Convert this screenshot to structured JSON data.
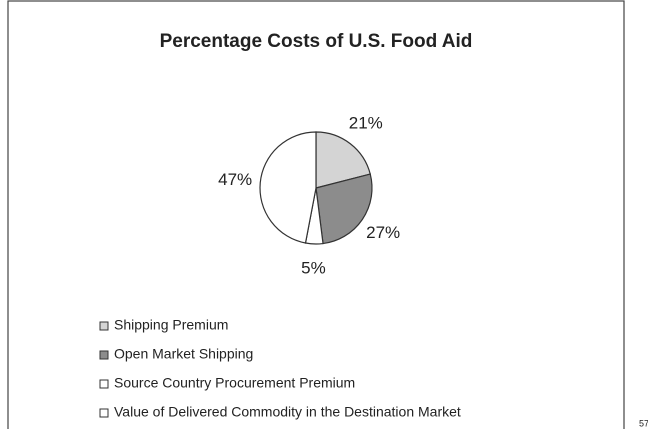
{
  "chart_data": {
    "type": "pie",
    "title": "Percentage Costs of U.S. Food Aid",
    "categories": [
      "Shipping Premium",
      "Open Market Shipping",
      "Source Country Procurement Premium",
      "Value of Delivered Commodity in the Destination Market"
    ],
    "values": [
      21,
      27,
      5,
      47
    ],
    "value_labels": [
      "21%",
      "27%",
      "5%",
      "47%"
    ],
    "colors": [
      "#d4d4d4",
      "#8c8c8c",
      "#ffffff",
      "#ffffff"
    ],
    "page_number": "57"
  }
}
